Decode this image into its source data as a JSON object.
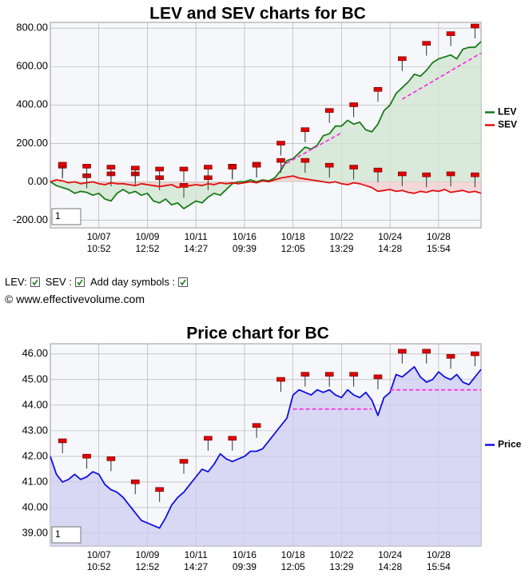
{
  "chart_data": [
    {
      "type": "line",
      "title": "LEV and SEV charts for BC",
      "categories": [
        null,
        null,
        null,
        null,
        null,
        null,
        null,
        null,
        [
          "10/07",
          "10:52"
        ],
        null,
        null,
        null,
        null,
        null,
        null,
        null,
        [
          "10/09",
          "12:52"
        ],
        null,
        null,
        null,
        null,
        null,
        null,
        null,
        [
          "10/11",
          "14:27"
        ],
        null,
        null,
        null,
        null,
        null,
        null,
        null,
        [
          "10/16",
          "09:39"
        ],
        null,
        null,
        null,
        null,
        null,
        null,
        null,
        [
          "10/18",
          "12:05"
        ],
        null,
        null,
        null,
        null,
        null,
        null,
        null,
        [
          "10/22",
          "13:29"
        ],
        null,
        null,
        null,
        null,
        null,
        null,
        null,
        [
          "10/24",
          "14:28"
        ],
        null,
        null,
        null,
        null,
        null,
        null,
        null,
        [
          "10/28",
          "15:54"
        ],
        null,
        null,
        null,
        null,
        null,
        null,
        null
      ],
      "series": [
        {
          "name": "LEV",
          "color": "#1a7a1a",
          "fill": "#cfe6cf",
          "values": [
            0,
            -20,
            -30,
            -40,
            -60,
            -50,
            -55,
            -70,
            -60,
            -90,
            -100,
            -60,
            -40,
            -60,
            -50,
            -70,
            -60,
            -100,
            -110,
            -90,
            -120,
            -110,
            -140,
            -120,
            -100,
            -110,
            -80,
            -60,
            -70,
            -40,
            -10,
            0,
            0,
            10,
            0,
            10,
            5,
            20,
            60,
            110,
            120,
            150,
            180,
            170,
            190,
            240,
            250,
            290,
            290,
            320,
            300,
            310,
            270,
            260,
            300,
            370,
            400,
            460,
            490,
            520,
            560,
            550,
            580,
            620,
            640,
            650,
            660,
            640,
            690,
            700,
            700,
            730
          ]
        },
        {
          "name": "SEV",
          "color": "#e01010",
          "fill": "#f3cccc",
          "values": [
            0,
            10,
            5,
            -5,
            0,
            -10,
            -5,
            0,
            -10,
            -15,
            -5,
            -10,
            -10,
            -15,
            -20,
            -10,
            -15,
            -20,
            -25,
            -20,
            -15,
            -30,
            -25,
            -20,
            -15,
            -20,
            -10,
            -15,
            -5,
            -10,
            -5,
            -10,
            -5,
            0,
            -5,
            5,
            0,
            10,
            20,
            25,
            30,
            20,
            15,
            10,
            5,
            0,
            -5,
            0,
            -10,
            -15,
            -5,
            -10,
            -20,
            -30,
            -50,
            -45,
            -40,
            -50,
            -45,
            -55,
            -60,
            -50,
            -55,
            -45,
            -50,
            -40,
            -55,
            -50,
            -45,
            -55,
            -50,
            -60
          ]
        }
      ],
      "ylim": [
        -240,
        830
      ],
      "yticks": [
        {
          "value": -200,
          "label": "-200.00"
        },
        {
          "value": 0,
          "label": "0.00"
        },
        {
          "value": 200,
          "label": "200.00"
        },
        {
          "value": 400,
          "label": "400.00"
        },
        {
          "value": 600,
          "label": "600.00"
        },
        {
          "value": 800,
          "label": "800.00"
        }
      ],
      "grid": true,
      "legend": "right",
      "day_symbols": true,
      "trend_color": "#ff22dd",
      "trend_lines": [
        {
          "x0": 38,
          "y0": 80,
          "x1": 48,
          "y1": 255
        },
        {
          "x0": 58,
          "y0": 430,
          "x1": 71,
          "y1": 670
        }
      ],
      "input_value": "1"
    },
    {
      "type": "line",
      "title": "Price chart for BC",
      "categories": [
        null,
        null,
        null,
        null,
        null,
        null,
        null,
        null,
        [
          "10/07",
          "10:52"
        ],
        null,
        null,
        null,
        null,
        null,
        null,
        null,
        [
          "10/09",
          "12:52"
        ],
        null,
        null,
        null,
        null,
        null,
        null,
        null,
        [
          "10/11",
          "14:27"
        ],
        null,
        null,
        null,
        null,
        null,
        null,
        null,
        [
          "10/16",
          "09:39"
        ],
        null,
        null,
        null,
        null,
        null,
        null,
        null,
        [
          "10/18",
          "12:05"
        ],
        null,
        null,
        null,
        null,
        null,
        null,
        null,
        [
          "10/22",
          "13:29"
        ],
        null,
        null,
        null,
        null,
        null,
        null,
        null,
        [
          "10/24",
          "14:28"
        ],
        null,
        null,
        null,
        null,
        null,
        null,
        null,
        [
          "10/28",
          "15:54"
        ],
        null,
        null,
        null,
        null,
        null,
        null,
        null
      ],
      "series": [
        {
          "name": "Price",
          "color": "#1010e0",
          "fill": "#cdcdf3",
          "values": [
            42.0,
            41.3,
            41.0,
            41.1,
            41.3,
            41.1,
            41.2,
            41.4,
            41.3,
            40.9,
            40.7,
            40.6,
            40.4,
            40.1,
            39.8,
            39.5,
            39.4,
            39.3,
            39.2,
            39.6,
            40.1,
            40.4,
            40.6,
            40.9,
            41.2,
            41.5,
            41.4,
            41.7,
            42.1,
            41.9,
            41.8,
            41.9,
            42.0,
            42.2,
            42.2,
            42.3,
            42.6,
            42.9,
            43.2,
            43.5,
            44.4,
            44.6,
            44.5,
            44.4,
            44.6,
            44.5,
            44.6,
            44.4,
            44.3,
            44.6,
            44.4,
            44.3,
            44.5,
            44.2,
            43.6,
            44.3,
            44.5,
            45.2,
            45.1,
            45.3,
            45.5,
            45.1,
            44.9,
            45.0,
            45.3,
            45.1,
            45.0,
            45.2,
            44.9,
            44.8,
            45.1,
            45.4
          ]
        }
      ],
      "ylim": [
        38.5,
        46.4
      ],
      "yticks": [
        {
          "value": 39,
          "label": "39.00"
        },
        {
          "value": 40,
          "label": "40.00"
        },
        {
          "value": 41,
          "label": "41.00"
        },
        {
          "value": 42,
          "label": "42.00"
        },
        {
          "value": 43,
          "label": "43.00"
        },
        {
          "value": 44,
          "label": "44.00"
        },
        {
          "value": 45,
          "label": "45.00"
        },
        {
          "value": 46,
          "label": "46.00"
        }
      ],
      "grid": true,
      "legend": "right",
      "day_symbols": true,
      "trend_color": "#ff22dd",
      "trend_lines": [
        {
          "x0": 40,
          "y0": 43.85,
          "x1": 53,
          "y1": 43.85
        },
        {
          "x0": 56,
          "y0": 44.6,
          "x1": 71,
          "y1": 44.6
        }
      ],
      "input_value": "1"
    }
  ],
  "controls": {
    "lev_label": "LEV:",
    "sev_label": "SEV :",
    "day_symbols_label": "Add day symbols :",
    "copyright": "© www.effectivevolume.com"
  }
}
